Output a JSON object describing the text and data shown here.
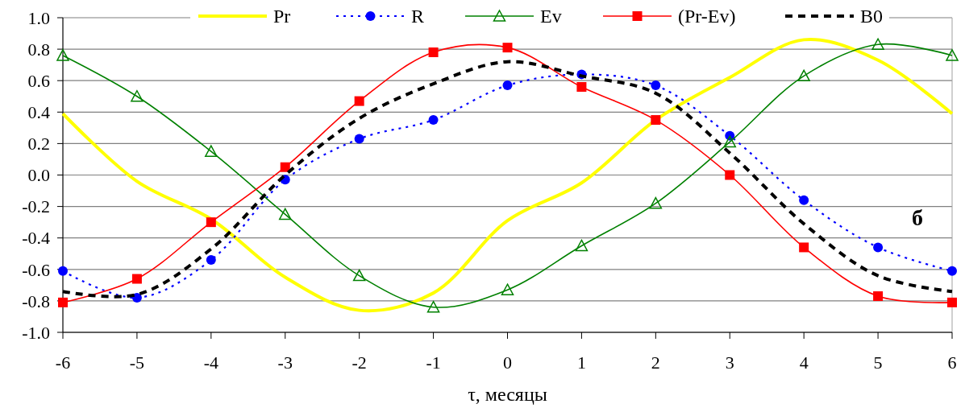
{
  "chart_data": {
    "type": "line",
    "xlabel": "τ, месяцы",
    "x": [
      -6,
      -5,
      -4,
      -3,
      -2,
      -1,
      0,
      1,
      2,
      3,
      4,
      5,
      6
    ],
    "xlim": [
      -6,
      6
    ],
    "xticks": [
      -6,
      -5,
      -4,
      -3,
      -2,
      -1,
      0,
      1,
      2,
      3,
      4,
      5,
      6
    ],
    "ylim": [
      -1,
      1
    ],
    "yticks": [
      {
        "value": -1,
        "label": "-1.0"
      },
      {
        "value": -0.8,
        "label": "-0.8"
      },
      {
        "value": -0.6,
        "label": "-0.6"
      },
      {
        "value": -0.4,
        "label": "-0.4"
      },
      {
        "value": -0.2,
        "label": "-0.2"
      },
      {
        "value": 0,
        "label": "0.0"
      },
      {
        "value": 0.2,
        "label": "0.2"
      },
      {
        "value": 0.4,
        "label": "0.4"
      },
      {
        "value": 0.6,
        "label": "0.6"
      },
      {
        "value": 0.8,
        "label": "0.8"
      },
      {
        "value": 1,
        "label": "1.0"
      }
    ],
    "grid": "y",
    "legend": "top",
    "series": [
      {
        "name": "Pr",
        "color": "#ffff00",
        "marker": "none",
        "line_style": "solid",
        "values": [
          0.39,
          -0.04,
          -0.28,
          -0.65,
          -0.86,
          -0.75,
          -0.29,
          -0.05,
          0.35,
          0.62,
          0.86,
          0.73,
          0.39
        ]
      },
      {
        "name": "R",
        "color": "#0000ff",
        "marker": "circle",
        "line_style": "dotted",
        "values": [
          -0.61,
          -0.78,
          -0.54,
          -0.03,
          0.23,
          0.35,
          0.57,
          0.64,
          0.57,
          0.25,
          -0.16,
          -0.46,
          -0.61
        ]
      },
      {
        "name": "Ev",
        "color": "#008000",
        "marker": "triangle",
        "line_style": "solid",
        "values": [
          0.76,
          0.5,
          0.15,
          -0.25,
          -0.64,
          -0.84,
          -0.73,
          -0.45,
          -0.18,
          0.21,
          0.63,
          0.83,
          0.76
        ]
      },
      {
        "name": "(Pr-Ev)",
        "color": "#ff0000",
        "marker": "square",
        "line_style": "solid",
        "values": [
          -0.81,
          -0.66,
          -0.3,
          0.05,
          0.47,
          0.78,
          0.81,
          0.56,
          0.35,
          0,
          -0.46,
          -0.77,
          -0.81
        ]
      },
      {
        "name": "B0",
        "color": "#000000",
        "marker": "none",
        "line_style": "dashed",
        "values": [
          -0.74,
          -0.76,
          -0.47,
          0,
          0.36,
          0.58,
          0.72,
          0.63,
          0.52,
          0.14,
          -0.31,
          -0.64,
          -0.74
        ]
      }
    ],
    "annotations": [
      "б"
    ]
  }
}
